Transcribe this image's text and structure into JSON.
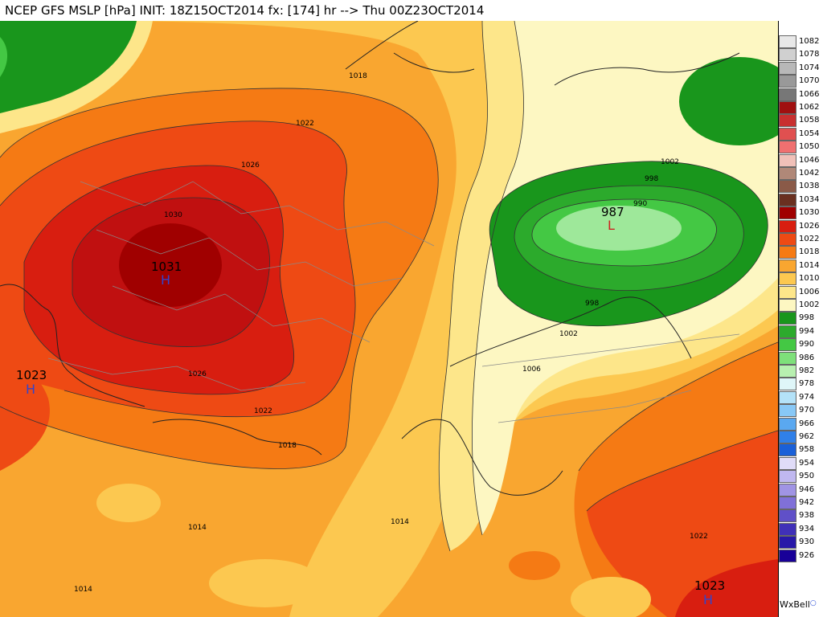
{
  "title": "NCEP GFS MSLP [hPa] INIT: 18Z15OCT2014 fx: [174] hr --> Thu 00Z23OCT2014",
  "brand": "WxBell",
  "pressure_centers": [
    {
      "id": "high-central-europe",
      "value": "1031",
      "letter": "H",
      "type": "high"
    },
    {
      "id": "high-west",
      "value": "1023",
      "letter": "H",
      "type": "high"
    },
    {
      "id": "low-siberia",
      "value": "987",
      "letter": "L",
      "type": "low"
    },
    {
      "id": "high-southeast",
      "value": "1023",
      "letter": "H",
      "type": "high"
    }
  ],
  "contour_labels": [
    "1018",
    "1022",
    "1026",
    "1030",
    "1026",
    "1022",
    "1018",
    "1014",
    "1014",
    "1014",
    "1002",
    "998",
    "990",
    "998",
    "1002",
    "1006",
    "1022"
  ],
  "legend": [
    {
      "label": "1082",
      "color": "#e8e8e8"
    },
    {
      "label": "1078",
      "color": "#d0d0d0"
    },
    {
      "label": "1074",
      "color": "#b8b8b8"
    },
    {
      "label": "1070",
      "color": "#999999"
    },
    {
      "label": "1066",
      "color": "#777777"
    },
    {
      "label": "1062",
      "color": "#a01010"
    },
    {
      "label": "1058",
      "color": "#c83030"
    },
    {
      "label": "1054",
      "color": "#e05050"
    },
    {
      "label": "1050",
      "color": "#f07070"
    },
    {
      "label": "1046",
      "color": "#f0c0b8"
    },
    {
      "label": "1042",
      "color": "#b08878"
    },
    {
      "label": "1038",
      "color": "#8a5a48"
    },
    {
      "label": "1034",
      "color": "#6a3020"
    },
    {
      "label": "1030",
      "color": "#a00000"
    },
    {
      "label": "1026",
      "color": "#d81e10"
    },
    {
      "label": "1022",
      "color": "#ee4a14"
    },
    {
      "label": "1018",
      "color": "#f57a14"
    },
    {
      "label": "1014",
      "color": "#f9a630"
    },
    {
      "label": "1010",
      "color": "#fcc850"
    },
    {
      "label": "1006",
      "color": "#fde68a"
    },
    {
      "label": "1002",
      "color": "#fdf7c2"
    },
    {
      "label": "998",
      "color": "#19961c"
    },
    {
      "label": "994",
      "color": "#2caa2c"
    },
    {
      "label": "990",
      "color": "#44c844"
    },
    {
      "label": "986",
      "color": "#7ee07a"
    },
    {
      "label": "982",
      "color": "#b8f0b0"
    },
    {
      "label": "978",
      "color": "#dff6f8"
    },
    {
      "label": "974",
      "color": "#b4e2f8"
    },
    {
      "label": "970",
      "color": "#88c8f6"
    },
    {
      "label": "966",
      "color": "#5aa8f0"
    },
    {
      "label": "962",
      "color": "#3080e8"
    },
    {
      "label": "958",
      "color": "#1a60d8"
    },
    {
      "label": "954",
      "color": "#e0dcf8"
    },
    {
      "label": "950",
      "color": "#c0b8f0"
    },
    {
      "label": "946",
      "color": "#a094e4"
    },
    {
      "label": "942",
      "color": "#8070d8"
    },
    {
      "label": "938",
      "color": "#6050c8"
    },
    {
      "label": "934",
      "color": "#4030b8"
    },
    {
      "label": "930",
      "color": "#2818a8"
    },
    {
      "label": "926",
      "color": "#180098"
    }
  ]
}
